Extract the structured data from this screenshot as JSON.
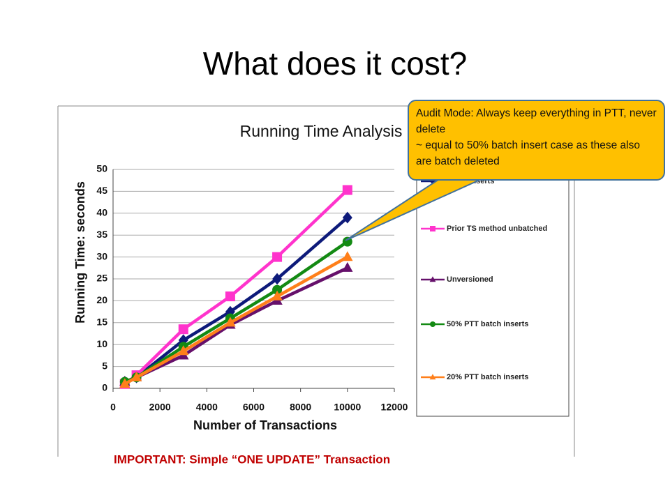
{
  "slide_title": "What does it cost?",
  "footnote": "IMPORTANT: Simple “ONE UPDATE” Transaction",
  "callout": [
    "Audit Mode:  Always keep everything in PTT, never delete",
    "~ equal to 50% batch insert case as these also are batch deleted"
  ],
  "chart_data": {
    "type": "line",
    "title": "Running Time Analysis",
    "x_label": "Number of Transactions",
    "y_label": "Running Time: seconds",
    "x": [
      500,
      1000,
      3000,
      5000,
      7000,
      10000
    ],
    "series": [
      {
        "name": "batch inserts",
        "color": "#0d1a7a",
        "marker": "diamond",
        "values": [
          1.5,
          2.5,
          11,
          17.5,
          25,
          39
        ]
      },
      {
        "name": "Prior TS method unbatched",
        "color": "#ff33cc",
        "marker": "square",
        "values": [
          1,
          3,
          13.5,
          21,
          30,
          45.3
        ]
      },
      {
        "name": "Unversioned",
        "color": "#66106b",
        "marker": "triangle",
        "values": [
          1.5,
          2.5,
          7.5,
          14.5,
          20,
          27.5
        ]
      },
      {
        "name": "50% PTT batch inserts",
        "color": "#138a13",
        "marker": "circle",
        "values": [
          1.5,
          2.5,
          9.5,
          16,
          22.5,
          33.5
        ]
      },
      {
        "name": "20% PTT batch inserts",
        "color": "#ff7f1a",
        "marker": "triangle",
        "values": [
          1,
          2.5,
          8.5,
          15,
          21,
          30
        ]
      }
    ],
    "xlim": [
      0,
      12000
    ],
    "xticks": [
      0,
      2000,
      4000,
      6000,
      8000,
      10000,
      12000
    ],
    "ylim": [
      0,
      50
    ],
    "yticks": [
      0,
      5,
      10,
      15,
      20,
      25,
      30,
      35,
      40,
      45,
      50
    ],
    "grid": true
  }
}
